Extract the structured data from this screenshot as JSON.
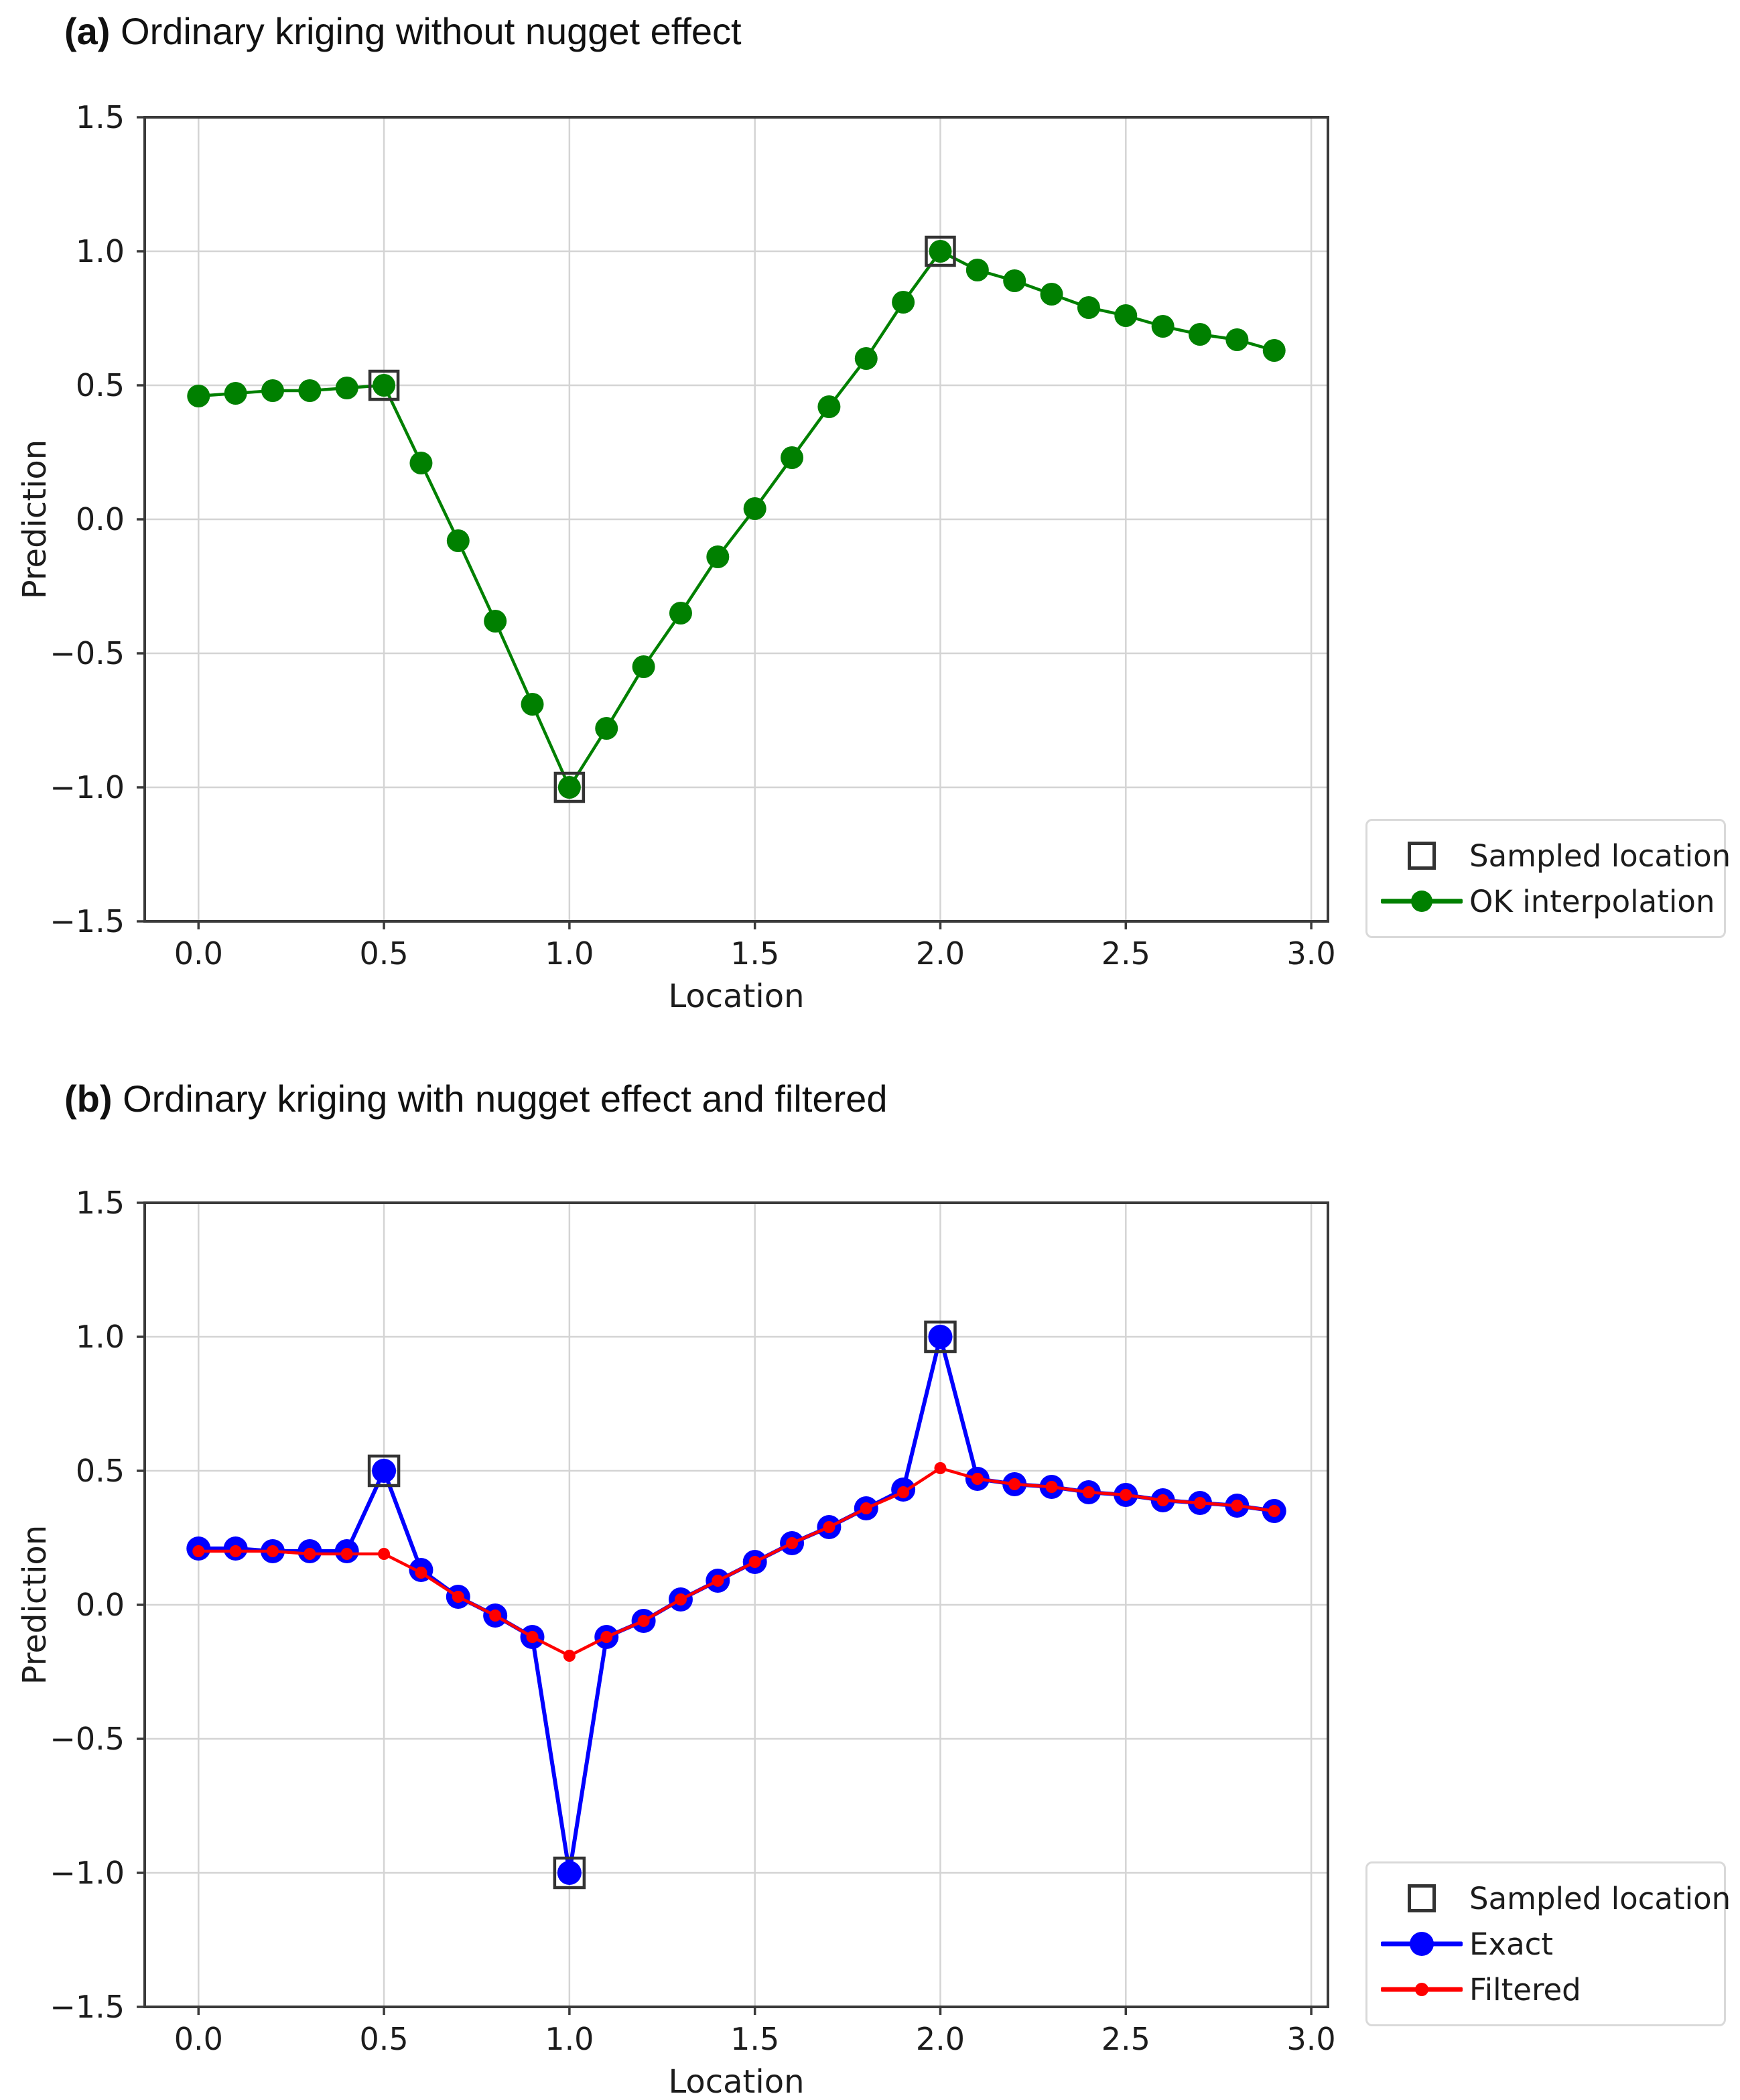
{
  "page": {
    "background": "#ffffff",
    "figure_type": "two stacked matplotlib line charts about kriging interpolation"
  },
  "charts": [
    {
      "id": "a",
      "title_bold": "(a)",
      "title_rest": " Ordinary kriging without nugget effect",
      "xlabel": "Location",
      "ylabel": "Prediction",
      "legend": [
        {
          "label": "Sampled location",
          "swatch": "open-square",
          "color": "#333333"
        },
        {
          "label": "OK interpolation",
          "swatch": "line-dot",
          "color": "#008000"
        }
      ],
      "chart_data": {
        "type": "line",
        "title": "(a) Ordinary kriging without nugget effect",
        "xlabel": "Location",
        "ylabel": "Prediction",
        "x": [
          0.0,
          0.1,
          0.2,
          0.3,
          0.4,
          0.5,
          0.6,
          0.7,
          0.8,
          0.9,
          1.0,
          1.1,
          1.2,
          1.3,
          1.4,
          1.5,
          1.6,
          1.7,
          1.8,
          1.9,
          2.0,
          2.1,
          2.2,
          2.3,
          2.4,
          2.5,
          2.6,
          2.7,
          2.8,
          2.9
        ],
        "series": [
          {
            "name": "OK interpolation",
            "color": "#008000",
            "line_width": 4.5,
            "marker": "circle",
            "marker_radius": 17,
            "values": [
              0.46,
              0.47,
              0.48,
              0.48,
              0.49,
              0.5,
              0.21,
              -0.08,
              -0.38,
              -0.69,
              -1.0,
              -0.78,
              -0.55,
              -0.35,
              -0.14,
              0.04,
              0.23,
              0.42,
              0.6,
              0.81,
              1.0,
              0.93,
              0.89,
              0.84,
              0.79,
              0.76,
              0.72,
              0.69,
              0.67,
              0.63
            ]
          }
        ],
        "sampled_locations": {
          "name": "Sampled location",
          "marker": "open-square",
          "edge_color": "#333333",
          "size": 42,
          "points": [
            [
              0.5,
              0.5
            ],
            [
              1.0,
              -1.0
            ],
            [
              2.0,
              1.0
            ]
          ]
        },
        "xlim": [
          -0.145,
          3.045
        ],
        "ylim": [
          -1.5,
          1.5
        ],
        "xtick_values": [
          0.0,
          0.5,
          1.0,
          1.5,
          2.0,
          2.5,
          3.0
        ],
        "xtick_labels": [
          "0.0",
          "0.5",
          "1.0",
          "1.5",
          "2.0",
          "2.5",
          "3.0"
        ],
        "ytick_values": [
          1.5,
          1.0,
          0.5,
          0.0,
          -0.5,
          -1.0,
          -1.5
        ],
        "ytick_labels": [
          "1.5",
          "1.0",
          "0.5",
          "0.0",
          "−0.5",
          "−1.0",
          "−1.5"
        ],
        "grid": true,
        "grid_color": "#d4d4d4",
        "spine_color": "#3a3a3a",
        "legend_position": "outside lower right"
      }
    },
    {
      "id": "b",
      "title_bold": "(b)",
      "title_rest": " Ordinary kriging with nugget effect and filtered",
      "xlabel": "Location",
      "ylabel": "Prediction",
      "legend": [
        {
          "label": "Sampled location",
          "swatch": "open-square",
          "color": "#333333"
        },
        {
          "label": "Exact",
          "swatch": "line-dot-large",
          "color": "#0000ff"
        },
        {
          "label": "Filtered",
          "swatch": "line-dot-small",
          "color": "#ff0000"
        }
      ],
      "chart_data": {
        "type": "line",
        "title": "(b) Ordinary kriging with nugget effect and filtered",
        "xlabel": "Location",
        "ylabel": "Prediction",
        "x": [
          0.0,
          0.1,
          0.2,
          0.3,
          0.4,
          0.5,
          0.6,
          0.7,
          0.8,
          0.9,
          1.0,
          1.1,
          1.2,
          1.3,
          1.4,
          1.5,
          1.6,
          1.7,
          1.8,
          1.9,
          2.0,
          2.1,
          2.2,
          2.3,
          2.4,
          2.5,
          2.6,
          2.7,
          2.8,
          2.9
        ],
        "series": [
          {
            "name": "Exact",
            "color": "#0000ff",
            "line_width": 6,
            "marker": "circle",
            "marker_radius": 18,
            "values": [
              0.21,
              0.21,
              0.2,
              0.2,
              0.2,
              0.5,
              0.13,
              0.03,
              -0.04,
              -0.12,
              -1.0,
              -0.12,
              -0.06,
              0.02,
              0.09,
              0.16,
              0.23,
              0.29,
              0.36,
              0.43,
              1.0,
              0.47,
              0.45,
              0.44,
              0.42,
              0.41,
              0.39,
              0.38,
              0.37,
              0.35
            ]
          },
          {
            "name": "Filtered",
            "color": "#ff0000",
            "line_width": 4.5,
            "marker": "circle",
            "marker_radius": 9,
            "values": [
              0.2,
              0.2,
              0.2,
              0.19,
              0.19,
              0.19,
              0.12,
              0.03,
              -0.04,
              -0.12,
              -0.19,
              -0.12,
              -0.06,
              0.02,
              0.09,
              0.16,
              0.23,
              0.29,
              0.36,
              0.42,
              0.51,
              0.47,
              0.45,
              0.44,
              0.42,
              0.41,
              0.39,
              0.38,
              0.37,
              0.35
            ]
          }
        ],
        "sampled_locations": {
          "name": "Sampled location",
          "marker": "open-square",
          "edge_color": "#333333",
          "size": 44,
          "points": [
            [
              0.5,
              0.5
            ],
            [
              1.0,
              -1.0
            ],
            [
              2.0,
              1.0
            ]
          ]
        },
        "xlim": [
          -0.145,
          3.045
        ],
        "ylim": [
          -1.5,
          1.5
        ],
        "xtick_values": [
          0.0,
          0.5,
          1.0,
          1.5,
          2.0,
          2.5,
          3.0
        ],
        "xtick_labels": [
          "0.0",
          "0.5",
          "1.0",
          "1.5",
          "2.0",
          "2.5",
          "3.0"
        ],
        "ytick_values": [
          1.5,
          1.0,
          0.5,
          0.0,
          -0.5,
          -1.0,
          -1.5
        ],
        "ytick_labels": [
          "1.5",
          "1.0",
          "0.5",
          "0.0",
          "−0.5",
          "−1.0",
          "−1.5"
        ],
        "grid": true,
        "grid_color": "#d4d4d4",
        "spine_color": "#3a3a3a",
        "legend_position": "outside lower right"
      }
    }
  ]
}
